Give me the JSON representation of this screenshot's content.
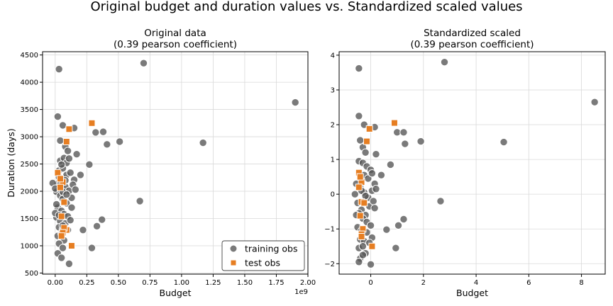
{
  "figure": {
    "suptitle": "Original budget and duration values vs. Standardized scaled values"
  },
  "colors": {
    "training": "#555555",
    "test": "#e67e22",
    "grid": "#d9d9d9",
    "axis": "#000000"
  },
  "chart_data": [
    {
      "type": "scatter",
      "title_line1": "Original data",
      "title_line2": "(0.39 pearson coefficient)",
      "xlabel": "Budget",
      "ylabel": "Duration (days)",
      "x_offset_label": "1e9",
      "xlim": [
        -0.1,
        2.0
      ],
      "ylim": [
        480,
        4560
      ],
      "xticks": [
        0.0,
        0.25,
        0.5,
        0.75,
        1.0,
        1.25,
        1.5,
        1.75,
        2.0
      ],
      "xtick_labels": [
        "0.00",
        "0.25",
        "0.50",
        "0.75",
        "1.00",
        "1.25",
        "1.50",
        "1.75",
        "2.00"
      ],
      "yticks": [
        500,
        1000,
        1500,
        2000,
        2500,
        3000,
        3500,
        4000,
        4500
      ],
      "ytick_labels": [
        "500",
        "1000",
        "1500",
        "2000",
        "2500",
        "3000",
        "3500",
        "4000",
        "4500"
      ],
      "grid": true,
      "legend": {
        "placement": "lower right",
        "entries": [
          {
            "label": "training obs",
            "marker": "circle"
          },
          {
            "label": "test obs",
            "marker": "square"
          }
        ]
      },
      "series": [
        {
          "name": "training obs",
          "marker": "circle",
          "points": [
            [
              0.03,
              4240
            ],
            [
              0.7,
              4350
            ],
            [
              1.9,
              3630
            ],
            [
              0.02,
              3370
            ],
            [
              0.06,
              3210
            ],
            [
              0.15,
              3160
            ],
            [
              0.32,
              3080
            ],
            [
              0.38,
              3090
            ],
            [
              0.41,
              2860
            ],
            [
              0.51,
              2910
            ],
            [
              1.17,
              2890
            ],
            [
              0.04,
              2930
            ],
            [
              0.08,
              2820
            ],
            [
              0.1,
              2740
            ],
            [
              0.17,
              2680
            ],
            [
              0.27,
              2490
            ],
            [
              0.04,
              2560
            ],
            [
              0.07,
              2610
            ],
            [
              0.09,
              2520
            ],
            [
              0.11,
              2600
            ],
            [
              0.03,
              2380
            ],
            [
              0.06,
              2420
            ],
            [
              0.09,
              2300
            ],
            [
              0.12,
              2340
            ],
            [
              0.15,
              2210
            ],
            [
              0.2,
              2300
            ],
            [
              0.02,
              2140
            ],
            [
              0.05,
              2160
            ],
            [
              0.08,
              2080
            ],
            [
              0.11,
              2010
            ],
            [
              0.14,
              2120
            ],
            [
              0.16,
              2030
            ],
            [
              0.01,
              1990
            ],
            [
              0.04,
              1920
            ],
            [
              0.06,
              1860
            ],
            [
              0.09,
              1780
            ],
            [
              0.13,
              1880
            ],
            [
              0.67,
              1820
            ],
            [
              0.02,
              1700
            ],
            [
              0.05,
              1640
            ],
            [
              0.07,
              1580
            ],
            [
              0.1,
              1540
            ],
            [
              0.13,
              1700
            ],
            [
              0.37,
              1480
            ],
            [
              0.01,
              1520
            ],
            [
              0.04,
              1450
            ],
            [
              0.08,
              1410
            ],
            [
              0.12,
              1470
            ],
            [
              0.33,
              1360
            ],
            [
              0.03,
              1340
            ],
            [
              0.06,
              1300
            ],
            [
              0.1,
              1290
            ],
            [
              0.22,
              1290
            ],
            [
              0.02,
              1180
            ],
            [
              0.05,
              1220
            ],
            [
              0.07,
              1100
            ],
            [
              0.03,
              1040
            ],
            [
              0.06,
              960
            ],
            [
              0.29,
              960
            ],
            [
              0.02,
              860
            ],
            [
              0.05,
              780
            ],
            [
              0.11,
              670
            ],
            [
              -0.02,
              2150
            ],
            [
              0.0,
              2050
            ],
            [
              0.0,
              1600
            ],
            [
              0.03,
              2260
            ],
            [
              0.05,
              2490
            ],
            [
              0.08,
              2200
            ],
            [
              0.01,
              1760
            ],
            [
              0.06,
              1990
            ],
            [
              0.09,
              1940
            ],
            [
              0.03,
              1560
            ],
            [
              0.06,
              1370
            ]
          ]
        },
        {
          "name": "test obs",
          "marker": "square",
          "points": [
            [
              0.29,
              3250
            ],
            [
              0.11,
              3140
            ],
            [
              0.09,
              2910
            ],
            [
              0.02,
              2340
            ],
            [
              0.06,
              2170
            ],
            [
              0.04,
              2070
            ],
            [
              0.07,
              1800
            ],
            [
              0.05,
              1540
            ],
            [
              0.09,
              1290
            ],
            [
              0.07,
              1330
            ],
            [
              0.06,
              1240
            ],
            [
              0.05,
              1180
            ],
            [
              0.13,
              1000
            ],
            [
              0.04,
              2230
            ]
          ]
        }
      ]
    },
    {
      "type": "scatter",
      "title_line1": "Standardized scaled",
      "title_line2": "(0.39 pearson coefficient)",
      "xlabel": "Budget",
      "ylabel": "",
      "x_offset_label": "",
      "xlim": [
        -1.2,
        8.9
      ],
      "ylim": [
        -2.3,
        4.1
      ],
      "xticks": [
        0,
        2,
        4,
        6,
        8
      ],
      "xtick_labels": [
        "0",
        "2",
        "4",
        "6",
        "8"
      ],
      "yticks": [
        -2,
        -1,
        0,
        1,
        2,
        3,
        4
      ],
      "ytick_labels": [
        "−2",
        "−1",
        "0",
        "1",
        "2",
        "3",
        "4"
      ],
      "grid": true,
      "series": [
        {
          "name": "training obs",
          "marker": "circle",
          "points": [
            [
              -0.45,
              3.62
            ],
            [
              2.8,
              3.8
            ],
            [
              8.5,
              2.65
            ],
            [
              -0.45,
              2.25
            ],
            [
              -0.25,
              2.0
            ],
            [
              0.15,
              1.93
            ],
            [
              1.0,
              1.78
            ],
            [
              1.25,
              1.78
            ],
            [
              1.3,
              1.45
            ],
            [
              1.9,
              1.52
            ],
            [
              5.05,
              1.5
            ],
            [
              -0.4,
              1.55
            ],
            [
              -0.3,
              1.35
            ],
            [
              -0.2,
              1.2
            ],
            [
              0.2,
              1.15
            ],
            [
              0.75,
              0.85
            ],
            [
              -0.45,
              0.95
            ],
            [
              -0.3,
              0.9
            ],
            [
              -0.15,
              0.8
            ],
            [
              0.0,
              0.7
            ],
            [
              -0.4,
              0.6
            ],
            [
              -0.25,
              0.55
            ],
            [
              -0.1,
              0.45
            ],
            [
              0.05,
              0.6
            ],
            [
              0.15,
              0.3
            ],
            [
              0.4,
              0.55
            ],
            [
              -0.55,
              0.3
            ],
            [
              -0.4,
              0.2
            ],
            [
              -0.25,
              0.05
            ],
            [
              -0.1,
              -0.1
            ],
            [
              0.05,
              0.1
            ],
            [
              0.2,
              0.15
            ],
            [
              -0.5,
              -0.25
            ],
            [
              -0.35,
              -0.45
            ],
            [
              -0.2,
              -0.6
            ],
            [
              -0.05,
              -0.35
            ],
            [
              0.1,
              -0.2
            ],
            [
              2.65,
              -0.2
            ],
            [
              -0.45,
              -0.55
            ],
            [
              -0.3,
              -0.7
            ],
            [
              -0.15,
              -0.8
            ],
            [
              0.0,
              -0.9
            ],
            [
              0.15,
              -0.4
            ],
            [
              1.25,
              -0.72
            ],
            [
              -0.5,
              -0.95
            ],
            [
              -0.35,
              -1.05
            ],
            [
              -0.15,
              -1.1
            ],
            [
              0.05,
              -1.25
            ],
            [
              1.05,
              -0.9
            ],
            [
              -0.4,
              -1.3
            ],
            [
              -0.25,
              -1.35
            ],
            [
              -0.05,
              -1.4
            ],
            [
              0.6,
              -1.02
            ],
            [
              -0.45,
              -1.55
            ],
            [
              -0.3,
              -1.5
            ],
            [
              -0.2,
              -1.7
            ],
            [
              -0.4,
              -1.85
            ],
            [
              -0.3,
              -1.75
            ],
            [
              0.95,
              -1.55
            ],
            [
              -0.45,
              -1.95
            ],
            [
              0.0,
              -2.02
            ],
            [
              -0.6,
              0.0
            ],
            [
              -0.55,
              -0.6
            ],
            [
              -0.35,
              0.1
            ],
            [
              -0.2,
              -0.05
            ]
          ]
        },
        {
          "name": "test obs",
          "marker": "square",
          "points": [
            [
              0.9,
              2.05
            ],
            [
              -0.05,
              1.88
            ],
            [
              -0.15,
              1.52
            ],
            [
              -0.45,
              0.62
            ],
            [
              -0.35,
              0.35
            ],
            [
              -0.45,
              0.2
            ],
            [
              -0.35,
              -0.22
            ],
            [
              -0.4,
              -0.62
            ],
            [
              -0.3,
              -1.0
            ],
            [
              -0.35,
              -1.15
            ],
            [
              -0.35,
              -1.22
            ],
            [
              0.05,
              -1.5
            ],
            [
              -0.25,
              -0.25
            ],
            [
              -0.4,
              0.5
            ]
          ]
        }
      ]
    }
  ]
}
